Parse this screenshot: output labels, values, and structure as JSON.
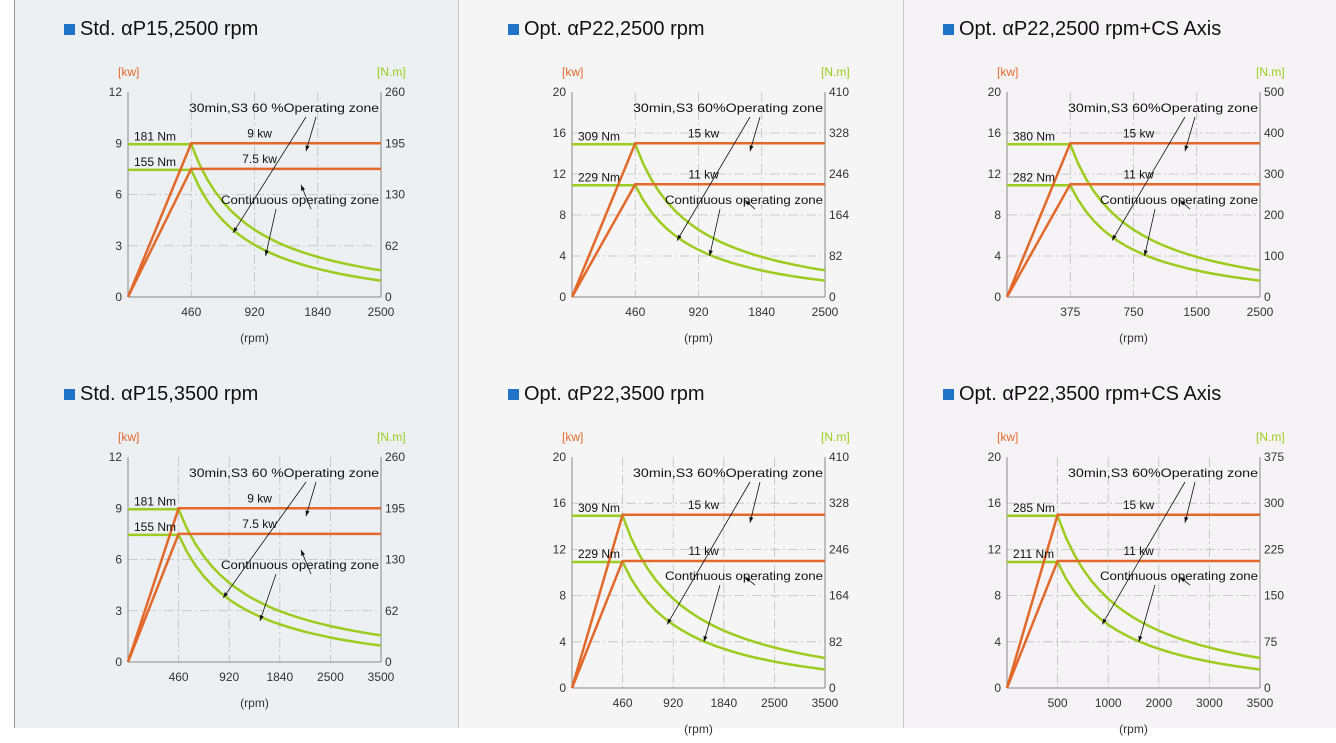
{
  "colors": {
    "power": "#e2692a",
    "torque": "#9ccc1f",
    "grid": "#bfbfbf",
    "title_marker": "#1f74c8"
  },
  "panels": [
    {
      "title": "Std.  αP15,2500 rpm",
      "chart_data": {
        "type": "line",
        "xlabel": "(rpm)",
        "ylabel_left": "[kw]",
        "ylabel_right": "[N.m]",
        "x_ticks": [
          "460",
          "920",
          "1840",
          "2500"
        ],
        "x_rated": 460,
        "y_ticks": [
          "0",
          "3",
          "6",
          "9",
          "12"
        ],
        "y_max": 12,
        "y2_ticks": [
          "0",
          "62",
          "130",
          "195",
          "260"
        ],
        "power_lines": [
          {
            "label": "9 kw",
            "value": 9
          },
          {
            "label": "7.5 kw",
            "value": 7.5
          }
        ],
        "torque_lines": [
          {
            "label": "181 Nm",
            "value": 181
          },
          {
            "label": "155 Nm",
            "value": 155
          }
        ],
        "annotations": [
          "30min,S3 60 %Operating zone",
          "Continuous operating zone"
        ]
      }
    },
    {
      "title": "Opt.  αP22,2500 rpm",
      "chart_data": {
        "type": "line",
        "xlabel": "(rpm)",
        "ylabel_left": "[kw]",
        "ylabel_right": "[N.m]",
        "x_ticks": [
          "460",
          "920",
          "1840",
          "2500"
        ],
        "x_rated": 460,
        "y_ticks": [
          "0",
          "4",
          "8",
          "12",
          "16",
          "20"
        ],
        "y_max": 20,
        "y2_ticks": [
          "0",
          "82",
          "164",
          "246",
          "328",
          "410"
        ],
        "power_lines": [
          {
            "label": "15 kw",
            "value": 15
          },
          {
            "label": "11 kw",
            "value": 11
          }
        ],
        "torque_lines": [
          {
            "label": "309 Nm",
            "value": 309
          },
          {
            "label": "229 Nm",
            "value": 229
          }
        ],
        "annotations": [
          "30min,S3 60%Operating zone",
          "Continuous operating zone"
        ]
      }
    },
    {
      "title": "Opt.  αP22,2500 rpm+CS Axis",
      "chart_data": {
        "type": "line",
        "xlabel": "(rpm)",
        "ylabel_left": "[kw]",
        "ylabel_right": "[N.m]",
        "x_ticks": [
          "375",
          "750",
          "1500",
          "2500"
        ],
        "x_rated": 375,
        "y_ticks": [
          "0",
          "4",
          "8",
          "12",
          "16",
          "20"
        ],
        "y_max": 20,
        "y2_ticks": [
          "0",
          "100",
          "200",
          "300",
          "400",
          "500"
        ],
        "power_lines": [
          {
            "label": "15 kw",
            "value": 15
          },
          {
            "label": "11 kw",
            "value": 11
          }
        ],
        "torque_lines": [
          {
            "label": "380 Nm",
            "value": 380
          },
          {
            "label": "282 Nm",
            "value": 282
          }
        ],
        "annotations": [
          "30min,S3 60%Operating zone",
          "Continuous operating zone"
        ]
      }
    },
    {
      "title": "Std.  αP15,3500 rpm",
      "chart_data": {
        "type": "line",
        "xlabel": "(rpm)",
        "ylabel_left": "[kw]",
        "ylabel_right": "[N.m]",
        "x_ticks": [
          "460",
          "920",
          "1840",
          "2500",
          "3500"
        ],
        "x_rated": 460,
        "y_ticks": [
          "0",
          "3",
          "6",
          "9",
          "12"
        ],
        "y_max": 12,
        "y2_ticks": [
          "0",
          "62",
          "130",
          "195",
          "260"
        ],
        "power_lines": [
          {
            "label": "9 kw",
            "value": 9
          },
          {
            "label": "7.5 kw",
            "value": 7.5
          }
        ],
        "torque_lines": [
          {
            "label": "181 Nm",
            "value": 181
          },
          {
            "label": "155 Nm",
            "value": 155
          }
        ],
        "annotations": [
          "30min,S3 60 %Operating zone",
          "Continuous operating zone"
        ]
      }
    },
    {
      "title": "Opt.  αP22,3500 rpm",
      "chart_data": {
        "type": "line",
        "xlabel": "(rpm)",
        "ylabel_left": "[kw]",
        "ylabel_right": "[N.m]",
        "x_ticks": [
          "460",
          "920",
          "1840",
          "2500",
          "3500"
        ],
        "x_rated": 460,
        "y_ticks": [
          "0",
          "4",
          "8",
          "12",
          "16",
          "20"
        ],
        "y_max": 20,
        "y2_ticks": [
          "0",
          "82",
          "164",
          "246",
          "328",
          "410"
        ],
        "power_lines": [
          {
            "label": "15 kw",
            "value": 15
          },
          {
            "label": "11 kw",
            "value": 11
          }
        ],
        "torque_lines": [
          {
            "label": "309 Nm",
            "value": 309
          },
          {
            "label": "229 Nm",
            "value": 229
          }
        ],
        "annotations": [
          "30min,S3 60%Operating zone",
          "Continuous operating zone"
        ]
      }
    },
    {
      "title": "Opt.  αP22,3500 rpm+CS Axis",
      "chart_data": {
        "type": "line",
        "xlabel": "(rpm)",
        "ylabel_left": "[kw]",
        "ylabel_right": "[N.m]",
        "x_ticks": [
          "500",
          "1000",
          "2000",
          "3000",
          "3500"
        ],
        "x_rated": 500,
        "y_ticks": [
          "0",
          "4",
          "8",
          "12",
          "16",
          "20"
        ],
        "y_max": 20,
        "y2_ticks": [
          "0",
          "75",
          "150",
          "225",
          "300",
          "375"
        ],
        "power_lines": [
          {
            "label": "15 kw",
            "value": 15
          },
          {
            "label": "11 kw",
            "value": 11
          }
        ],
        "torque_lines": [
          {
            "label": "285 Nm",
            "value": 285
          },
          {
            "label": "211 Nm",
            "value": 211
          }
        ],
        "annotations": [
          "30min,S3 60%Operating zone",
          "Continuous operating zone"
        ]
      }
    }
  ]
}
